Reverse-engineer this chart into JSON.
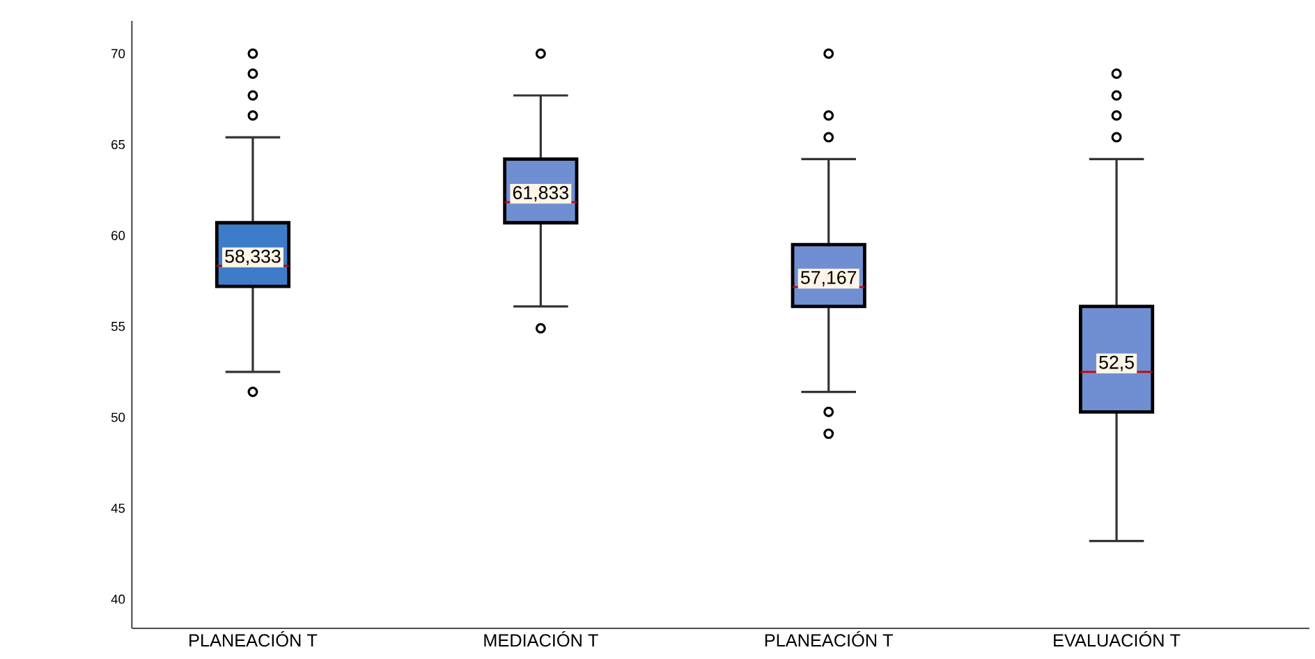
{
  "chart_data": {
    "type": "box",
    "categories": [
      "PLANEACIÓN T",
      "MEDIACIÓN T",
      "PLANEACIÓN T",
      "EVALUACIÓN T"
    ],
    "colors": [
      "#3d7cc9",
      "#6f8fd2",
      "#6f8fd2",
      "#6f8fd2"
    ],
    "boxes": [
      {
        "low": 52.5,
        "q1": 57.2,
        "median": 58.333,
        "q3": 60.7,
        "high": 65.4,
        "outliers": [
          51.4,
          66.6,
          67.7,
          68.9,
          70
        ]
      },
      {
        "low": 56.1,
        "q1": 60.7,
        "median": 61.833,
        "q3": 64.2,
        "high": 67.7,
        "outliers": [
          54.9,
          70
        ]
      },
      {
        "low": 51.4,
        "q1": 56.1,
        "median": 57.167,
        "q3": 59.5,
        "high": 64.2,
        "outliers": [
          49.1,
          50.3,
          65.4,
          66.6,
          70
        ]
      },
      {
        "low": 43.2,
        "q1": 50.3,
        "median": 52.5,
        "q3": 56.1,
        "high": 64.2,
        "outliers": [
          65.4,
          66.6,
          67.7,
          68.9
        ]
      }
    ],
    "value_labels": [
      "58,333",
      "61,833",
      "57,167",
      "52,5"
    ],
    "ylim": [
      38.4,
      71.8
    ],
    "yticks": [
      40,
      45,
      50,
      55,
      60,
      65,
      70
    ]
  }
}
